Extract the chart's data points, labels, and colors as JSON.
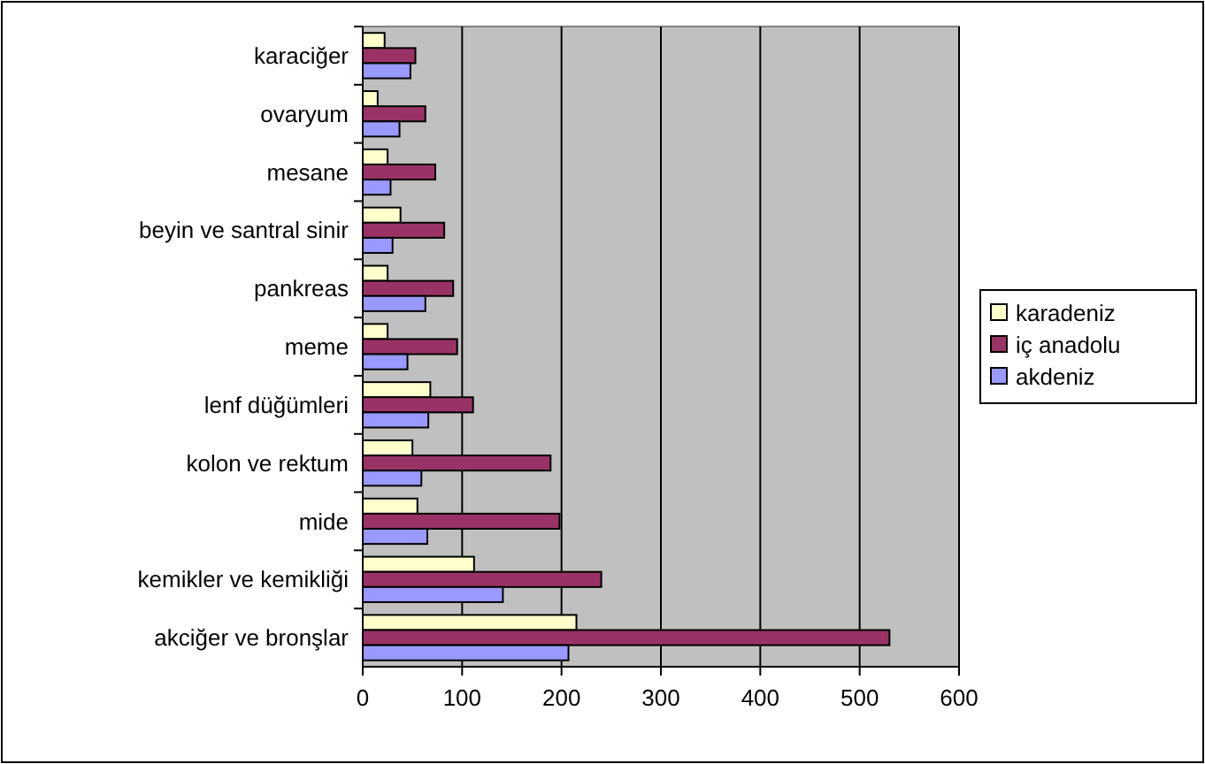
{
  "chart_data": {
    "type": "bar",
    "orientation": "horizontal",
    "categories": [
      "karaciğer",
      "ovaryum",
      "mesane",
      "beyin ve santral sinir",
      "pankreas",
      "meme",
      "lenf düğümleri",
      "kolon ve rektum",
      "mide",
      "kemikler ve kemikliği",
      "akciğer ve bronşlar"
    ],
    "series": [
      {
        "name": "karadeniz",
        "color": "#ffffcc",
        "values": [
          22,
          15,
          25,
          38,
          25,
          25,
          68,
          50,
          55,
          112,
          215
        ]
      },
      {
        "name": "iç anadolu",
        "color": "#993366",
        "values": [
          53,
          63,
          73,
          82,
          91,
          95,
          111,
          189,
          198,
          240,
          530
        ]
      },
      {
        "name": "akdeniz",
        "color": "#9999ff",
        "values": [
          48,
          37,
          28,
          30,
          63,
          45,
          66,
          59,
          65,
          141,
          207
        ]
      }
    ],
    "xlim": [
      0,
      600
    ],
    "xticks": [
      0,
      100,
      200,
      300,
      400,
      500,
      600
    ],
    "grid": "x",
    "legend": "right"
  }
}
